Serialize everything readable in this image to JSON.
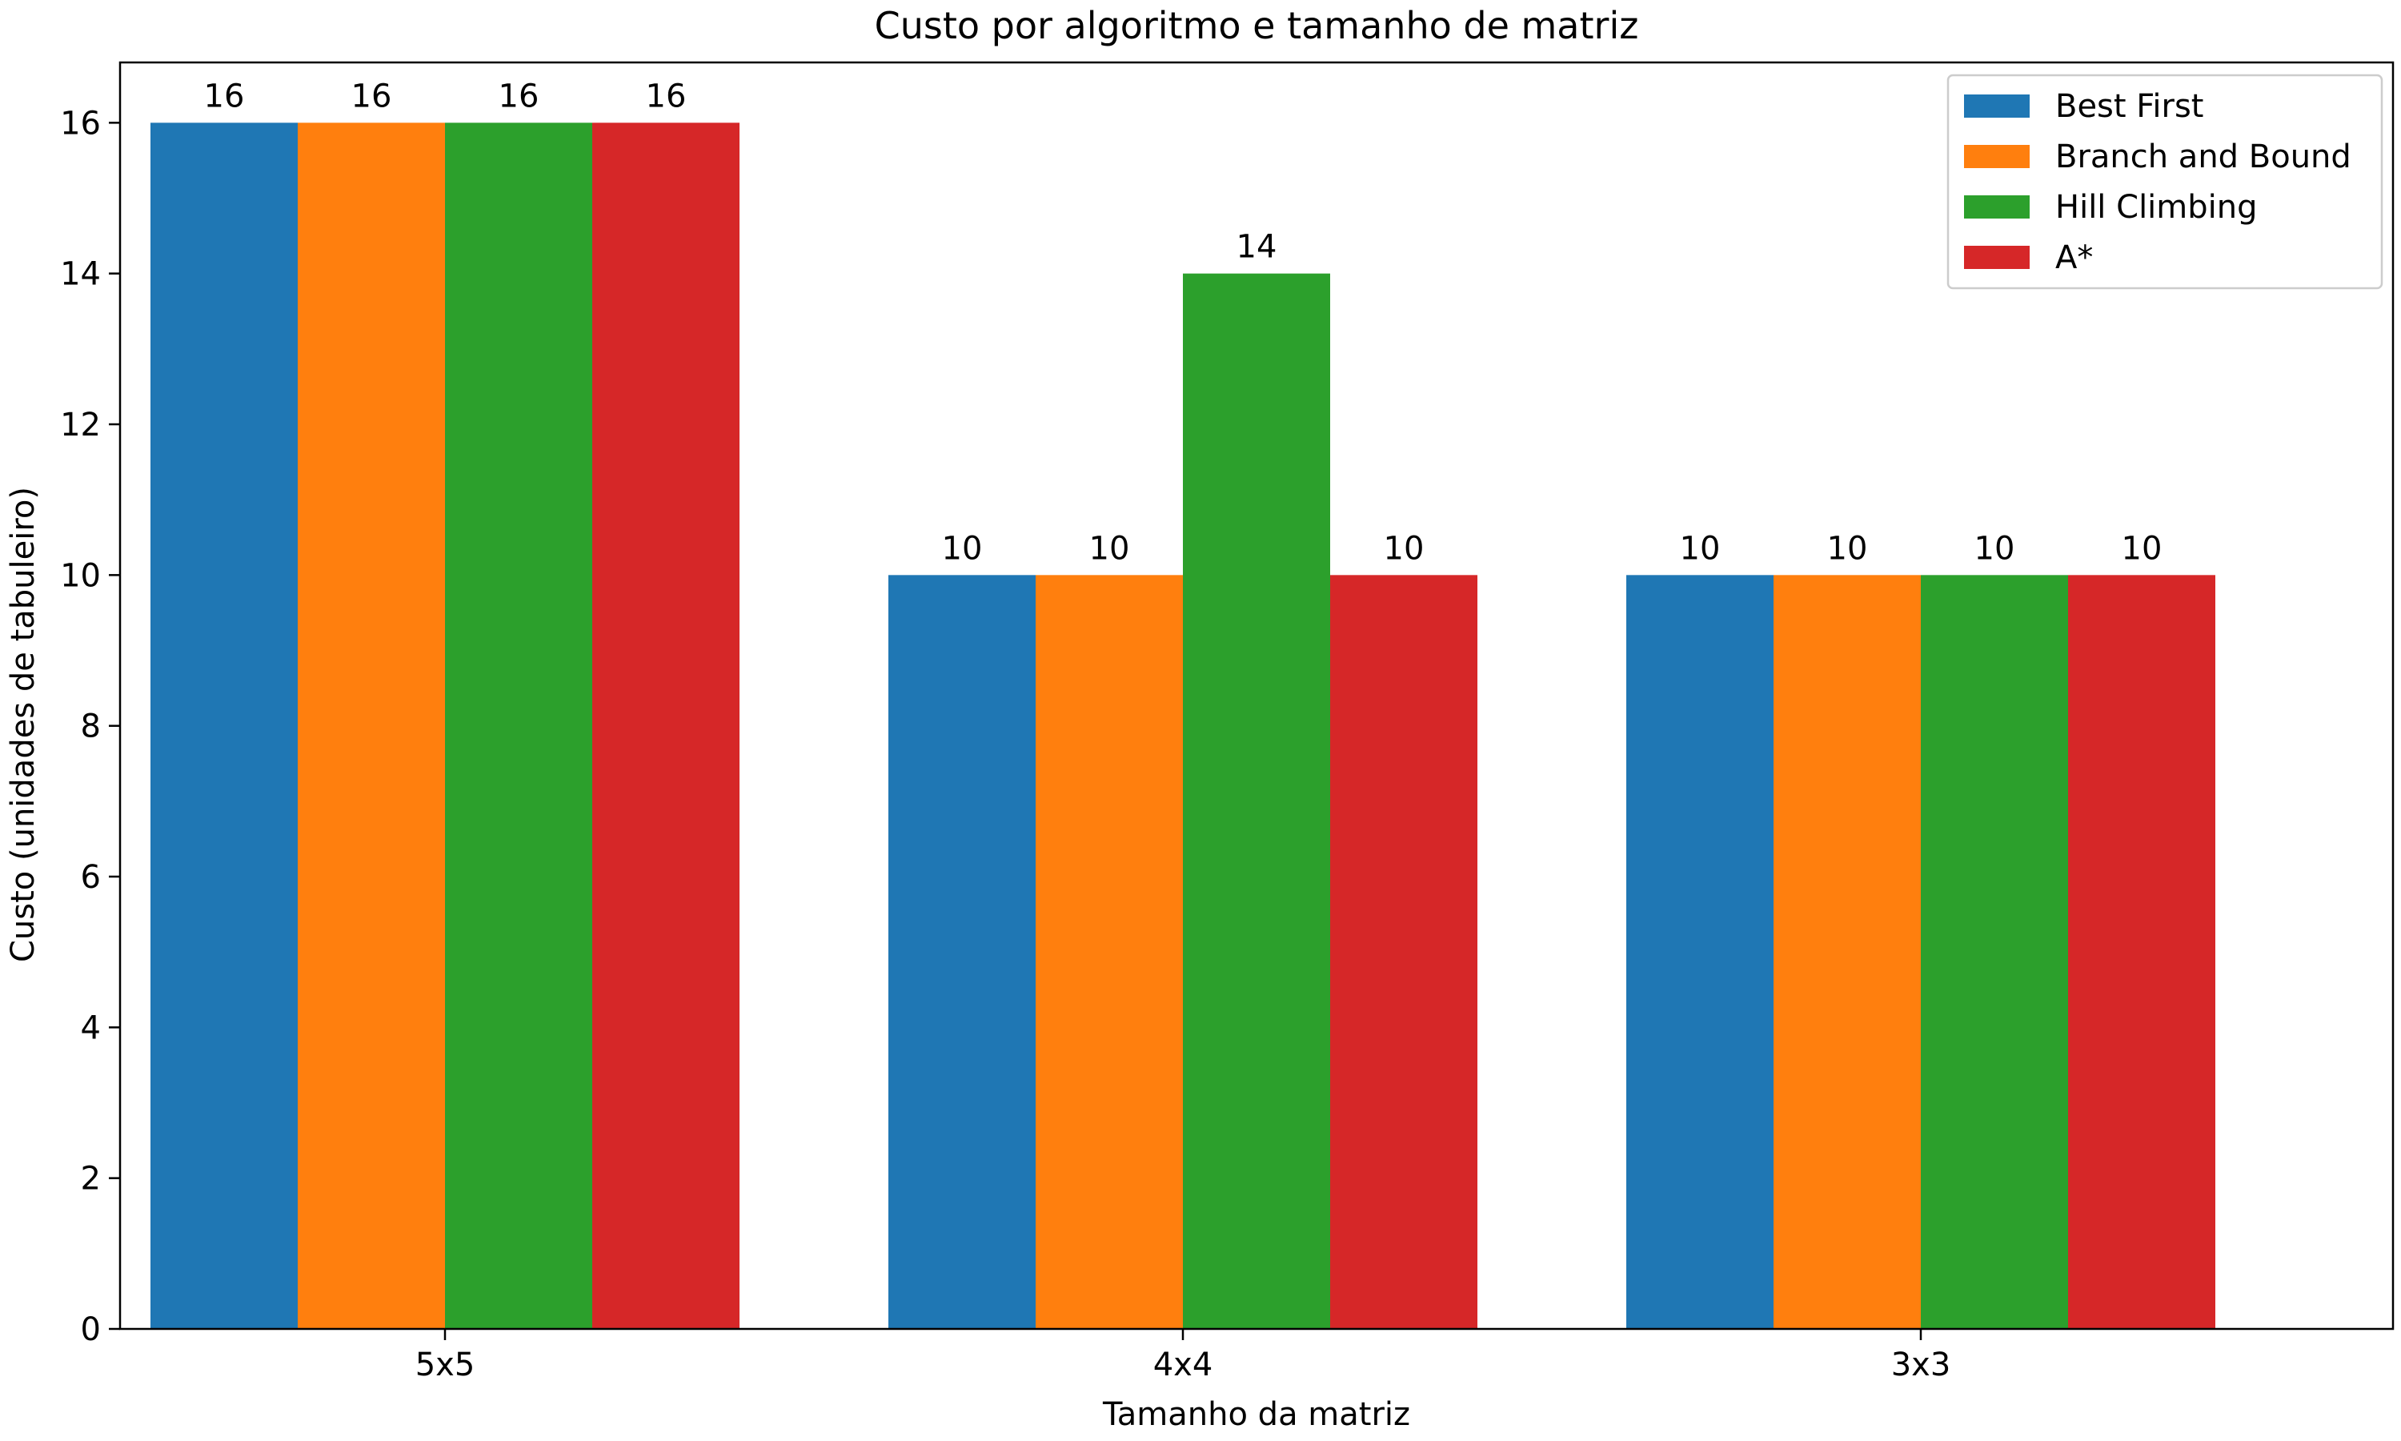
{
  "chart_data": {
    "type": "bar",
    "title": "Custo por algoritmo e tamanho de matriz",
    "xlabel": "Tamanho da matriz",
    "ylabel": "Custo (unidades de tabuleiro)",
    "categories": [
      "5x5",
      "4x4",
      "3x3"
    ],
    "series": [
      {
        "name": "Best First",
        "color": "#1f77b4",
        "values": [
          16,
          10,
          10
        ]
      },
      {
        "name": "Branch and Bound",
        "color": "#ff7f0e",
        "values": [
          16,
          10,
          10
        ]
      },
      {
        "name": "Hill Climbing",
        "color": "#2ca02c",
        "values": [
          16,
          14,
          10
        ]
      },
      {
        "name": "A*",
        "color": "#d62728",
        "values": [
          16,
          10,
          10
        ]
      }
    ],
    "ylim": [
      0,
      16.8
    ],
    "yticks": [
      0,
      2,
      4,
      6,
      8,
      10,
      12,
      14,
      16
    ],
    "grid": false,
    "legend_position": "top-right",
    "data_labels": true
  }
}
